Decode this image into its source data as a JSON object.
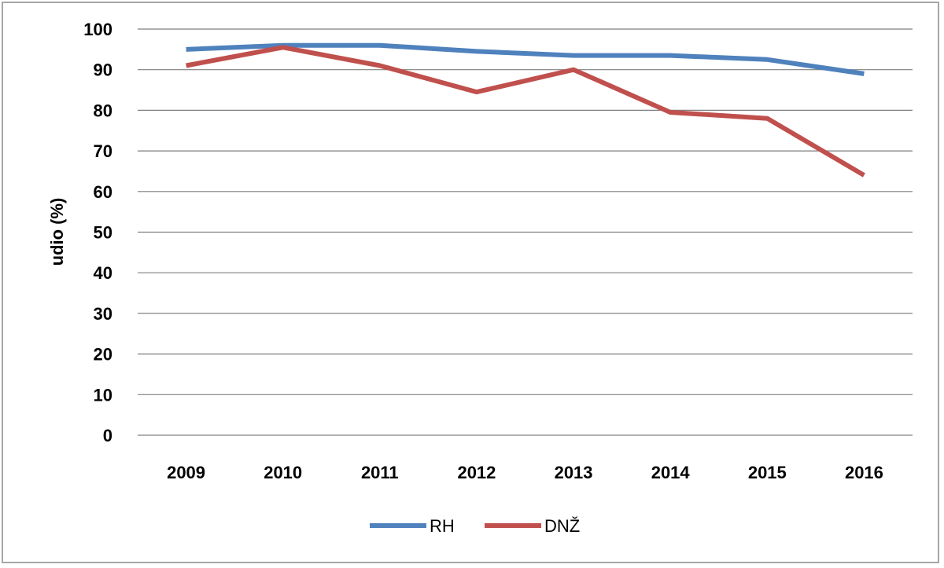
{
  "chart_data": {
    "type": "line",
    "title": "",
    "xlabel": "",
    "ylabel": "udio (%)",
    "categories": [
      "2009",
      "2010",
      "2011",
      "2012",
      "2013",
      "2014",
      "2015",
      "2016"
    ],
    "ylim": [
      0,
      100
    ],
    "yticks": [
      "0",
      "10",
      "20",
      "30",
      "40",
      "50",
      "60",
      "70",
      "80",
      "90",
      "100"
    ],
    "grid": true,
    "legend_position": "bottom",
    "series": [
      {
        "name": "RH",
        "color": "#4f81bd",
        "values": [
          95,
          96,
          96,
          94.5,
          93.5,
          93.5,
          92.5,
          89
        ]
      },
      {
        "name": "DNŽ",
        "color": "#c0504d",
        "values": [
          91,
          95.5,
          91,
          84.5,
          90,
          79.5,
          78,
          64
        ]
      }
    ]
  }
}
